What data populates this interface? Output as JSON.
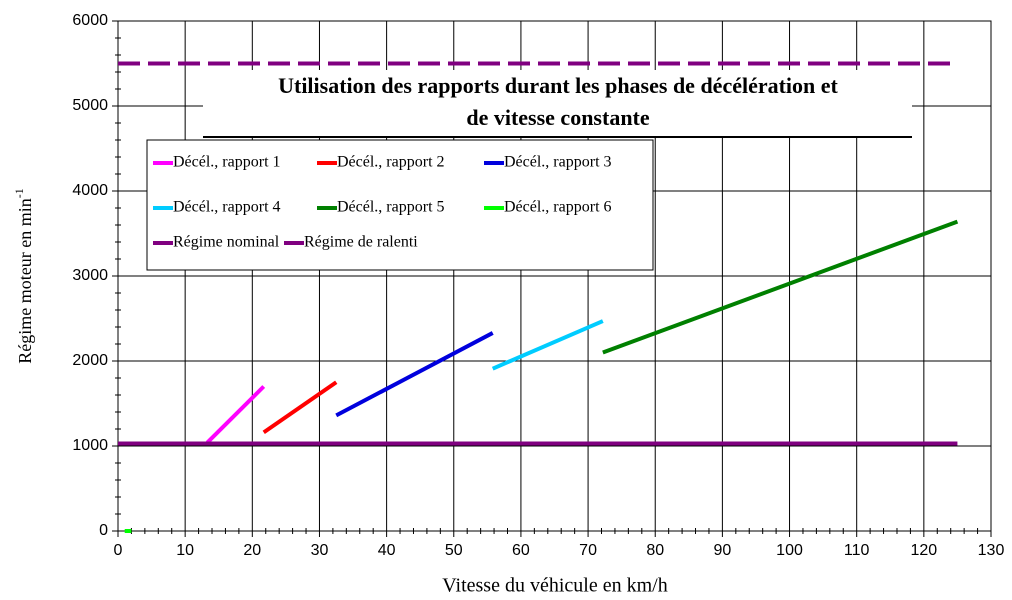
{
  "chart_data": {
    "type": "line",
    "title": "Utilisation des rapports durant les phases de décélération et",
    "title_line2": "de vitesse constante",
    "x_label": "Vitesse du véhicule en km/h",
    "y_label": "Régime moteur en min",
    "y_label_sup": "-1",
    "xlim": [
      0,
      130
    ],
    "xticks": [
      0,
      10,
      20,
      30,
      40,
      50,
      60,
      70,
      80,
      90,
      100,
      110,
      120,
      130
    ],
    "ylim": [
      0,
      6000
    ],
    "yticks": [
      0,
      1000,
      2000,
      3000,
      4000,
      5000,
      6000
    ],
    "grid": true,
    "series": [
      {
        "name": "Décél., rapport 1",
        "color": "#ff00ff",
        "x": [
          13.3,
          21.7
        ],
        "values": [
          1040,
          1700
        ]
      },
      {
        "name": "Décél., rapport 2",
        "color": "#ff0000",
        "x": [
          21.7,
          32.5
        ],
        "values": [
          1160,
          1750
        ]
      },
      {
        "name": "Décél., rapport 3",
        "color": "#0000dd",
        "x": [
          32.5,
          55.8
        ],
        "values": [
          1360,
          2330
        ]
      },
      {
        "name": "Décél., rapport 4",
        "color": "#00ccff",
        "x": [
          55.8,
          72.2
        ],
        "values": [
          1910,
          2470
        ]
      },
      {
        "name": "Décél., rapport 5",
        "color": "#008000",
        "x": [
          72.2,
          125
        ],
        "values": [
          2100,
          3640
        ]
      },
      {
        "name": "Décél., rapport 6",
        "color": "#00ff00",
        "x": [
          1,
          2
        ],
        "values": [
          0,
          0
        ]
      },
      {
        "name": "Régime nominal",
        "color": "#800080",
        "x": [
          0,
          125
        ],
        "values": [
          5500,
          5500
        ],
        "dashed": true
      },
      {
        "name": "Régime de ralenti",
        "color": "#800080",
        "x": [
          0,
          125
        ],
        "values": [
          1030,
          1030
        ]
      }
    ]
  }
}
